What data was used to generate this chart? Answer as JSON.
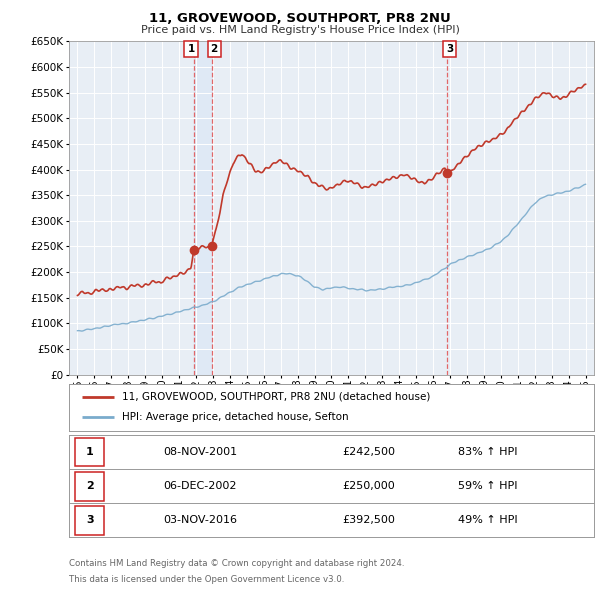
{
  "title": "11, GROVEWOOD, SOUTHPORT, PR8 2NU",
  "subtitle": "Price paid vs. HM Land Registry's House Price Index (HPI)",
  "legend_line1": "11, GROVEWOOD, SOUTHPORT, PR8 2NU (detached house)",
  "legend_line2": "HPI: Average price, detached house, Sefton",
  "footnote1": "Contains HM Land Registry data © Crown copyright and database right 2024.",
  "footnote2": "This data is licensed under the Open Government Licence v3.0.",
  "sales": [
    {
      "label": "1",
      "date": "08-NOV-2001",
      "price": 242500,
      "x": 2001.856
    },
    {
      "label": "2",
      "date": "06-DEC-2002",
      "price": 250000,
      "x": 2002.922
    },
    {
      "label": "3",
      "date": "03-NOV-2016",
      "price": 392500,
      "x": 2016.843
    }
  ],
  "vline_x": [
    2001.856,
    2002.922,
    2016.843
  ],
  "sale_rows": [
    {
      "num": "1",
      "date": "08-NOV-2001",
      "price": "£242,500",
      "pct": "83% ↑ HPI"
    },
    {
      "num": "2",
      "date": "06-DEC-2002",
      "price": "£250,000",
      "pct": "59% ↑ HPI"
    },
    {
      "num": "3",
      "date": "03-NOV-2016",
      "price": "£392,500",
      "pct": "49% ↑ HPI"
    }
  ],
  "hpi_color": "#7aabcc",
  "price_color": "#c0392b",
  "dot_color": "#c0392b",
  "vline_color": "#e05050",
  "vfill_color": "#dce8f5",
  "plot_bg": "#e8eef5",
  "ylim": [
    0,
    650000
  ],
  "yticks": [
    0,
    50000,
    100000,
    150000,
    200000,
    250000,
    300000,
    350000,
    400000,
    450000,
    500000,
    550000,
    600000,
    650000
  ],
  "xlim": [
    1994.5,
    2025.5
  ],
  "xticks": [
    1995,
    1996,
    1997,
    1998,
    1999,
    2000,
    2001,
    2002,
    2003,
    2004,
    2005,
    2006,
    2007,
    2008,
    2009,
    2010,
    2011,
    2012,
    2013,
    2014,
    2015,
    2016,
    2017,
    2018,
    2019,
    2020,
    2021,
    2022,
    2023,
    2024,
    2025
  ]
}
